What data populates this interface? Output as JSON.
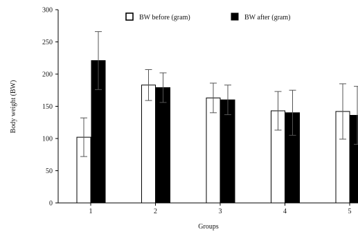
{
  "chart_data": {
    "type": "bar",
    "categories": [
      "1",
      "2",
      "3",
      "4",
      "5"
    ],
    "series": [
      {
        "name": "BW before (gram)",
        "values": [
          102,
          183,
          163,
          143,
          142
        ],
        "errors": [
          30,
          24,
          23,
          30,
          43
        ],
        "color": "#ffffff"
      },
      {
        "name": "BW after (gram)",
        "values": [
          221,
          179,
          160,
          140,
          136
        ],
        "errors": [
          45,
          23,
          23,
          35,
          45
        ],
        "color": "#000000"
      }
    ],
    "title": "",
    "xlabel": "Groups",
    "ylabel": "Body weight (BW)",
    "ylim": [
      0,
      300
    ],
    "yticks": [
      "0",
      "50",
      "100",
      "150",
      "200",
      "250",
      "300"
    ],
    "legend_position": "top",
    "grid": false
  }
}
